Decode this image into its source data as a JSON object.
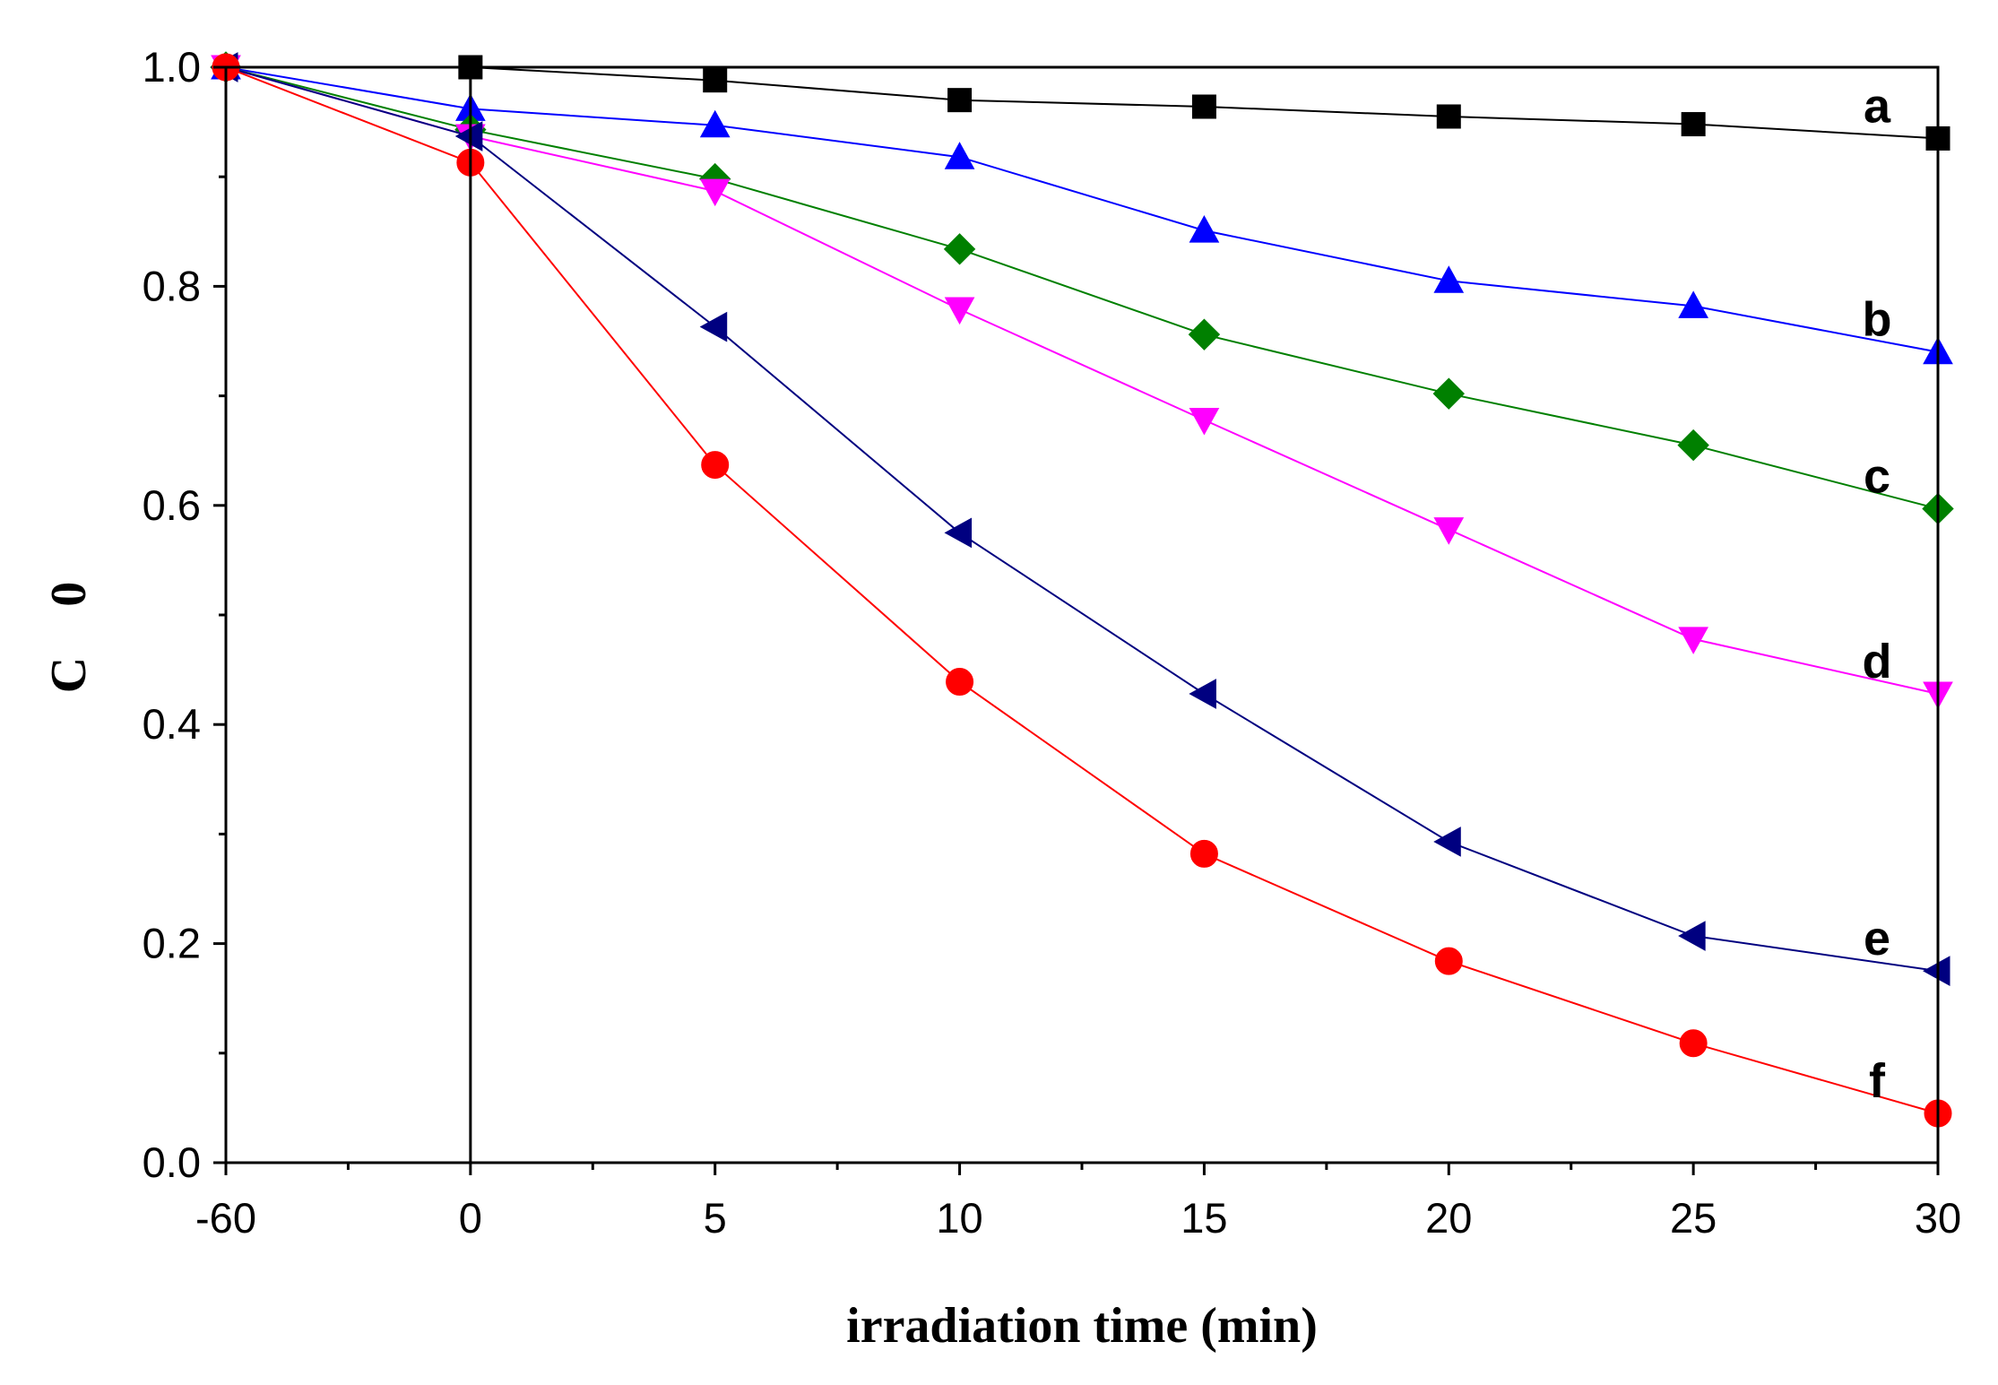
{
  "chart_data": {
    "type": "line",
    "title": "",
    "xlabel": "irradiation time (min)",
    "ylabel": "C    0",
    "x_positions": [
      0,
      1,
      2,
      3,
      4,
      5,
      6,
      7
    ],
    "categories": [
      "-60",
      "0",
      "5",
      "10",
      "15",
      "20",
      "25",
      "30"
    ],
    "ylim": [
      0.0,
      1.0
    ],
    "yticks": [
      "0.0",
      "0.2",
      "0.4",
      "0.6",
      "0.8",
      "1.0"
    ],
    "ytick_values": [
      0.0,
      0.2,
      0.4,
      0.6,
      0.8,
      1.0
    ],
    "divider_at": "0",
    "legend": "none",
    "series": [
      {
        "name": "a",
        "color": "#000000",
        "marker": "square",
        "values": [
          1.0,
          1.0,
          0.988,
          0.97,
          0.964,
          0.955,
          0.948,
          0.935
        ]
      },
      {
        "name": "b",
        "color": "#0000ff",
        "marker": "triangle-up",
        "values": [
          1.0,
          0.962,
          0.947,
          0.918,
          0.851,
          0.805,
          0.782,
          0.74
        ]
      },
      {
        "name": "c",
        "color": "#008000",
        "marker": "diamond",
        "values": [
          1.0,
          0.943,
          0.898,
          0.834,
          0.756,
          0.702,
          0.655,
          0.597
        ]
      },
      {
        "name": "d",
        "color": "#ff00ff",
        "marker": "triangle-down",
        "values": [
          1.0,
          0.937,
          0.887,
          0.779,
          0.678,
          0.578,
          0.478,
          0.428
        ]
      },
      {
        "name": "e",
        "color": "#000080",
        "marker": "triangle-left",
        "values": [
          1.0,
          0.937,
          0.763,
          0.575,
          0.428,
          0.293,
          0.207,
          0.175
        ]
      },
      {
        "name": "f",
        "color": "#ff0000",
        "marker": "circle",
        "values": [
          1.0,
          0.913,
          0.637,
          0.439,
          0.282,
          0.184,
          0.109,
          0.045
        ]
      }
    ]
  }
}
